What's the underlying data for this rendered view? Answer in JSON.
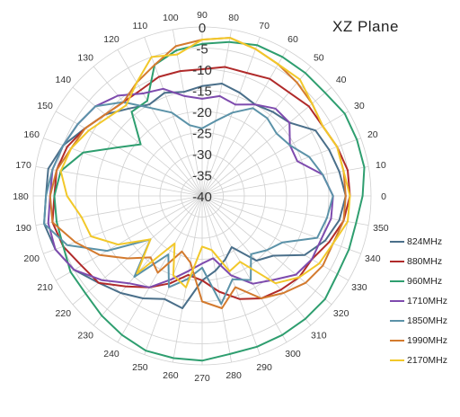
{
  "chart_data": {
    "type": "line",
    "subtype": "polar",
    "title": "XZ  Plane",
    "radial_ticks": [
      0,
      -5,
      -10,
      -15,
      -20,
      -25,
      -30,
      -35,
      -40
    ],
    "radial_range": [
      -40,
      0
    ],
    "angle_ticks": [
      0,
      10,
      20,
      30,
      40,
      50,
      60,
      70,
      80,
      90,
      100,
      110,
      120,
      130,
      140,
      150,
      160,
      170,
      180,
      190,
      200,
      210,
      220,
      230,
      240,
      250,
      260,
      270,
      280,
      290,
      300,
      310,
      320,
      330,
      340,
      350
    ],
    "grid": true,
    "legend_position": "right",
    "series": [
      {
        "name": "824MHz",
        "color": "#4a6f8a",
        "points": [
          [
            0,
            -6
          ],
          [
            10,
            -7
          ],
          [
            20,
            -8
          ],
          [
            30,
            -9
          ],
          [
            40,
            -13
          ],
          [
            50,
            -14
          ],
          [
            60,
            -15
          ],
          [
            70,
            -14
          ],
          [
            80,
            -13
          ],
          [
            90,
            -14
          ],
          [
            100,
            -15
          ],
          [
            110,
            -14
          ],
          [
            120,
            -15
          ],
          [
            130,
            -13
          ],
          [
            140,
            -10
          ],
          [
            150,
            -8
          ],
          [
            160,
            -5
          ],
          [
            170,
            -3
          ],
          [
            180,
            -3
          ],
          [
            190,
            -2
          ],
          [
            200,
            -3
          ],
          [
            210,
            -5
          ],
          [
            220,
            -8
          ],
          [
            230,
            -10
          ],
          [
            240,
            -12
          ],
          [
            250,
            -14
          ],
          [
            260,
            -13
          ],
          [
            270,
            -20
          ],
          [
            280,
            -22
          ],
          [
            290,
            -24
          ],
          [
            300,
            -26
          ],
          [
            310,
            -20
          ],
          [
            320,
            -18
          ],
          [
            330,
            -12
          ],
          [
            340,
            -9
          ],
          [
            350,
            -7
          ]
        ]
      },
      {
        "name": "880MHz",
        "color": "#b02a2a",
        "points": [
          [
            0,
            -5
          ],
          [
            10,
            -5
          ],
          [
            20,
            -6
          ],
          [
            30,
            -7
          ],
          [
            40,
            -7
          ],
          [
            50,
            -8
          ],
          [
            60,
            -8
          ],
          [
            70,
            -9
          ],
          [
            80,
            -9
          ],
          [
            90,
            -10
          ],
          [
            100,
            -10
          ],
          [
            110,
            -10
          ],
          [
            120,
            -11
          ],
          [
            130,
            -11
          ],
          [
            140,
            -10
          ],
          [
            150,
            -8
          ],
          [
            160,
            -6
          ],
          [
            170,
            -5
          ],
          [
            180,
            -5
          ],
          [
            190,
            -4
          ],
          [
            200,
            -5
          ],
          [
            210,
            -7
          ],
          [
            220,
            -8
          ],
          [
            230,
            -12
          ],
          [
            240,
            -15
          ],
          [
            250,
            -18
          ],
          [
            260,
            -21
          ],
          [
            270,
            -20
          ],
          [
            280,
            -17
          ],
          [
            290,
            -14
          ],
          [
            300,
            -12
          ],
          [
            310,
            -11
          ],
          [
            320,
            -10
          ],
          [
            330,
            -10
          ],
          [
            340,
            -8
          ],
          [
            350,
            -6
          ]
        ]
      },
      {
        "name": "960MHz",
        "color": "#2e9e6f",
        "points": [
          [
            0,
            -2
          ],
          [
            10,
            -1
          ],
          [
            20,
            -1
          ],
          [
            30,
            -1
          ],
          [
            40,
            -2
          ],
          [
            50,
            -2
          ],
          [
            60,
            -2
          ],
          [
            70,
            -2
          ],
          [
            80,
            -3
          ],
          [
            90,
            -4
          ],
          [
            100,
            -5
          ],
          [
            110,
            -7
          ],
          [
            120,
            -14
          ],
          [
            130,
            -14
          ],
          [
            140,
            -21
          ],
          [
            150,
            -17
          ],
          [
            160,
            -10
          ],
          [
            170,
            -6
          ],
          [
            180,
            -5
          ],
          [
            190,
            -5
          ],
          [
            200,
            -5
          ],
          [
            210,
            -4
          ],
          [
            220,
            -4
          ],
          [
            230,
            -3
          ],
          [
            240,
            -2
          ],
          [
            250,
            -1
          ],
          [
            260,
            -1
          ],
          [
            270,
            -1
          ],
          [
            280,
            -2
          ],
          [
            290,
            -2
          ],
          [
            300,
            -2
          ],
          [
            310,
            -2
          ],
          [
            320,
            -2
          ],
          [
            330,
            -3
          ],
          [
            340,
            -3
          ],
          [
            350,
            -3
          ]
        ]
      },
      {
        "name": "1710MHz",
        "color": "#7e4bae",
        "points": [
          [
            0,
            -9
          ],
          [
            10,
            -11
          ],
          [
            20,
            -16
          ],
          [
            30,
            -16
          ],
          [
            40,
            -13
          ],
          [
            50,
            -13
          ],
          [
            60,
            -15
          ],
          [
            70,
            -17
          ],
          [
            80,
            -16
          ],
          [
            90,
            -17
          ],
          [
            100,
            -16
          ],
          [
            110,
            -13
          ],
          [
            120,
            -12
          ],
          [
            130,
            -9
          ],
          [
            140,
            -7
          ],
          [
            150,
            -6
          ],
          [
            160,
            -5
          ],
          [
            170,
            -4
          ],
          [
            180,
            -4
          ],
          [
            190,
            -3
          ],
          [
            200,
            -3
          ],
          [
            210,
            -5
          ],
          [
            220,
            -9
          ],
          [
            230,
            -13
          ],
          [
            240,
            -15
          ],
          [
            250,
            -19
          ],
          [
            260,
            -22
          ],
          [
            270,
            -24
          ],
          [
            280,
            -25
          ],
          [
            290,
            -20
          ],
          [
            300,
            -16
          ],
          [
            310,
            -14
          ],
          [
            320,
            -11
          ],
          [
            330,
            -10
          ],
          [
            340,
            -10
          ],
          [
            350,
            -9
          ]
        ]
      },
      {
        "name": "1850MHz",
        "color": "#5b92a8",
        "points": [
          [
            0,
            -9
          ],
          [
            10,
            -11
          ],
          [
            20,
            -13
          ],
          [
            30,
            -16
          ],
          [
            40,
            -17
          ],
          [
            50,
            -16
          ],
          [
            60,
            -16
          ],
          [
            70,
            -19
          ],
          [
            80,
            -22
          ],
          [
            90,
            -24
          ],
          [
            100,
            -23
          ],
          [
            110,
            -19
          ],
          [
            120,
            -16
          ],
          [
            130,
            -11
          ],
          [
            140,
            -7
          ],
          [
            150,
            -6
          ],
          [
            160,
            -5
          ],
          [
            170,
            -4
          ],
          [
            180,
            -3
          ],
          [
            190,
            -2
          ],
          [
            200,
            -6
          ],
          [
            210,
            -14
          ],
          [
            220,
            -24
          ],
          [
            230,
            -15
          ],
          [
            240,
            -24
          ],
          [
            250,
            -17
          ],
          [
            260,
            -20
          ],
          [
            270,
            -23
          ],
          [
            280,
            -14
          ],
          [
            290,
            -19
          ],
          [
            300,
            -17
          ],
          [
            310,
            -22
          ],
          [
            320,
            -20
          ],
          [
            330,
            -18
          ],
          [
            340,
            -11
          ],
          [
            350,
            -10
          ]
        ]
      },
      {
        "name": "1990MHz",
        "color": "#d37a2e",
        "points": [
          [
            0,
            -6
          ],
          [
            10,
            -6
          ],
          [
            20,
            -6
          ],
          [
            30,
            -7
          ],
          [
            40,
            -6
          ],
          [
            50,
            -5
          ],
          [
            60,
            -4
          ],
          [
            70,
            -3
          ],
          [
            80,
            -2
          ],
          [
            90,
            -3
          ],
          [
            100,
            -4
          ],
          [
            110,
            -7
          ],
          [
            120,
            -9
          ],
          [
            130,
            -11
          ],
          [
            140,
            -10
          ],
          [
            150,
            -8
          ],
          [
            160,
            -7
          ],
          [
            170,
            -5
          ],
          [
            180,
            -4
          ],
          [
            190,
            -4
          ],
          [
            200,
            -8
          ],
          [
            210,
            -12
          ],
          [
            220,
            -17
          ],
          [
            230,
            -21
          ],
          [
            240,
            -19
          ],
          [
            250,
            -26
          ],
          [
            260,
            -24
          ],
          [
            270,
            -15
          ],
          [
            280,
            -13
          ],
          [
            290,
            -17
          ],
          [
            300,
            -12
          ],
          [
            310,
            -10
          ],
          [
            320,
            -8
          ],
          [
            330,
            -7
          ],
          [
            340,
            -7
          ],
          [
            350,
            -6
          ]
        ]
      },
      {
        "name": "2170MHz",
        "color": "#f2c82a",
        "points": [
          [
            0,
            -5
          ],
          [
            10,
            -6
          ],
          [
            20,
            -6
          ],
          [
            30,
            -7
          ],
          [
            40,
            -6
          ],
          [
            50,
            -4
          ],
          [
            60,
            -4
          ],
          [
            70,
            -3
          ],
          [
            80,
            -2
          ],
          [
            90,
            -3
          ],
          [
            100,
            -6
          ],
          [
            110,
            -5
          ],
          [
            120,
            -9
          ],
          [
            130,
            -12
          ],
          [
            140,
            -11
          ],
          [
            150,
            -9
          ],
          [
            160,
            -7
          ],
          [
            170,
            -6
          ],
          [
            180,
            -8
          ],
          [
            190,
            -11
          ],
          [
            200,
            -12
          ],
          [
            210,
            -17
          ],
          [
            220,
            -24
          ],
          [
            230,
            -16
          ],
          [
            240,
            -27
          ],
          [
            250,
            -20
          ],
          [
            260,
            -18
          ],
          [
            270,
            -28
          ],
          [
            280,
            -27
          ],
          [
            290,
            -21
          ],
          [
            300,
            -22
          ],
          [
            310,
            -13
          ],
          [
            320,
            -10
          ],
          [
            330,
            -8
          ],
          [
            340,
            -7
          ],
          [
            350,
            -5
          ]
        ]
      }
    ]
  }
}
